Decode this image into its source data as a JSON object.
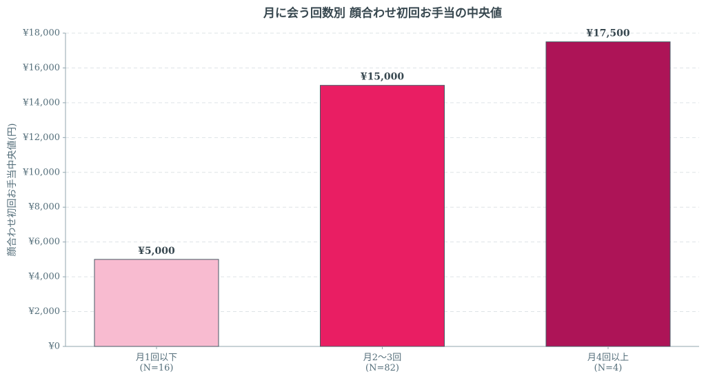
{
  "chart_data": {
    "type": "bar",
    "title": "月に会う回数別 顔合わせ初回お手当の中央値",
    "y_label": "顔合わせ初回お手当中央値(円)",
    "categories": [
      "月1回以下\n(N=16)",
      "月2〜3回\n(N=82)",
      "月4回以上\n(N=4)"
    ],
    "values": [
      5000,
      15000,
      17500
    ],
    "value_labels": [
      "¥5,000",
      "¥15,000",
      "¥17,500"
    ],
    "colors": [
      "#f8bbd0",
      "#e91e63",
      "#ad1457"
    ],
    "edge_color": "#455a64",
    "ylim": [
      0,
      18000
    ],
    "yticks": [
      {
        "value": 0,
        "label": "¥0"
      },
      {
        "value": 2000,
        "label": "¥2,000"
      },
      {
        "value": 4000,
        "label": "¥4,000"
      },
      {
        "value": 6000,
        "label": "¥6,000"
      },
      {
        "value": 8000,
        "label": "¥8,000"
      },
      {
        "value": 10000,
        "label": "¥10,000"
      },
      {
        "value": 12000,
        "label": "¥12,000"
      },
      {
        "value": 14000,
        "label": "¥14,000"
      },
      {
        "value": 16000,
        "label": "¥16,000"
      },
      {
        "value": 18000,
        "label": "¥18,000"
      }
    ],
    "grid": true
  }
}
